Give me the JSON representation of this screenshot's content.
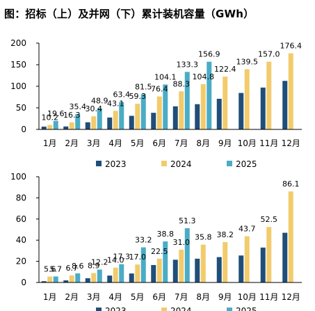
{
  "figure": {
    "title": "图：招标（上）及并网（下）累计装机容量（GWh）"
  },
  "colors": {
    "2023": "#1f4e79",
    "2024": "#f2cb6c",
    "2025": "#4bacc6"
  },
  "chart_data": [
    {
      "type": "bar",
      "categories": [
        "1月",
        "2月",
        "3月",
        "4月",
        "5月",
        "6月",
        "7月",
        "8月",
        "9月",
        "10月",
        "11月",
        "12月"
      ],
      "ylim": [
        0,
        200
      ],
      "yticks": [
        "0",
        "50",
        "100",
        "150",
        "200"
      ],
      "grid": false,
      "legend": "bottom",
      "series": [
        {
          "name": "2023",
          "values": [
            6.5,
            6.8,
            16.5,
            27.5,
            31.5,
            38.5,
            53.5,
            58.5,
            71.0,
            84.5,
            97.0,
            112.5
          ]
        },
        {
          "name": "2024",
          "values": [
            10.2,
            16.3,
            30.4,
            43.1,
            59.3,
            76.4,
            88.3,
            104.8,
            122.4,
            139.5,
            157.0,
            176.4
          ]
        },
        {
          "name": "2025",
          "values": [
            19.6,
            35.4,
            48.9,
            63.4,
            81.5,
            104.1,
            133.3,
            156.9,
            null,
            null,
            null,
            null
          ]
        }
      ],
      "data_labels": [
        {
          "text": "10.2",
          "series": 1,
          "index": 0
        },
        {
          "text": "16.3",
          "series": 1,
          "index": 1
        },
        {
          "text": "30.4",
          "series": 1,
          "index": 2
        },
        {
          "text": "43.1",
          "series": 1,
          "index": 3
        },
        {
          "text": "59.3",
          "series": 1,
          "index": 4
        },
        {
          "text": "76.4",
          "series": 1,
          "index": 5
        },
        {
          "text": "88.3",
          "series": 1,
          "index": 6
        },
        {
          "text": "104.8",
          "series": 1,
          "index": 7
        },
        {
          "text": "122.4",
          "series": 1,
          "index": 8
        },
        {
          "text": "139.5",
          "series": 1,
          "index": 9
        },
        {
          "text": "157.0",
          "series": 1,
          "index": 10
        },
        {
          "text": "176.4",
          "series": 1,
          "index": 11
        },
        {
          "text": "19.6",
          "series": 2,
          "index": 0
        },
        {
          "text": "35.4",
          "series": 2,
          "index": 1
        },
        {
          "text": "48.9",
          "series": 2,
          "index": 2
        },
        {
          "text": "63.4",
          "series": 2,
          "index": 3
        },
        {
          "text": "81.5",
          "series": 2,
          "index": 4
        },
        {
          "text": "104.1",
          "series": 2,
          "index": 5
        },
        {
          "text": "133.3",
          "series": 2,
          "index": 6
        },
        {
          "text": "156.9",
          "series": 2,
          "index": 7
        }
      ]
    },
    {
      "type": "bar",
      "categories": [
        "1月",
        "2月",
        "3月",
        "4月",
        "5月",
        "6月",
        "7月",
        "8月",
        "9月",
        "10月",
        "11月",
        "12月"
      ],
      "ylim": [
        0,
        100
      ],
      "yticks": [
        "0",
        "20",
        "40",
        "60",
        "80",
        "100"
      ],
      "grid": false,
      "legend": "bottom",
      "series": [
        {
          "name": "2023",
          "values": [
            1.2,
            2.0,
            4.0,
            6.5,
            8.5,
            16.5,
            21.5,
            22.5,
            24.0,
            25.5,
            33.0,
            47.0
          ]
        },
        {
          "name": "2024",
          "values": [
            5.6,
            6.7,
            8.9,
            14.0,
            17.0,
            22.5,
            31.0,
            35.8,
            38.2,
            43.7,
            52.5,
            86.1
          ]
        },
        {
          "name": "2025",
          "values": [
            5.7,
            8.6,
            12.2,
            17.3,
            33.2,
            38.8,
            51.3,
            null,
            null,
            null,
            null,
            null
          ]
        }
      ],
      "data_labels": [
        {
          "text": "5.6",
          "series": 1,
          "index": 0
        },
        {
          "text": "6.7",
          "series": 1,
          "index": 1
        },
        {
          "text": "8.9",
          "series": 1,
          "index": 2
        },
        {
          "text": "14.0",
          "series": 1,
          "index": 3
        },
        {
          "text": "17.0",
          "series": 1,
          "index": 4
        },
        {
          "text": "22.5",
          "series": 1,
          "index": 5
        },
        {
          "text": "31.0",
          "series": 1,
          "index": 6
        },
        {
          "text": "35.8",
          "series": 1,
          "index": 7
        },
        {
          "text": "38.2",
          "series": 1,
          "index": 8
        },
        {
          "text": "43.7",
          "series": 1,
          "index": 9
        },
        {
          "text": "52.5",
          "series": 1,
          "index": 10
        },
        {
          "text": "86.1",
          "series": 1,
          "index": 11
        },
        {
          "text": "5.7",
          "series": 2,
          "index": 0
        },
        {
          "text": "8.6",
          "series": 2,
          "index": 1
        },
        {
          "text": "12.2",
          "series": 2,
          "index": 2
        },
        {
          "text": "17.3",
          "series": 2,
          "index": 3
        },
        {
          "text": "33.2",
          "series": 2,
          "index": 4
        },
        {
          "text": "38.8",
          "series": 2,
          "index": 5
        },
        {
          "text": "51.3",
          "series": 2,
          "index": 6
        }
      ]
    }
  ]
}
